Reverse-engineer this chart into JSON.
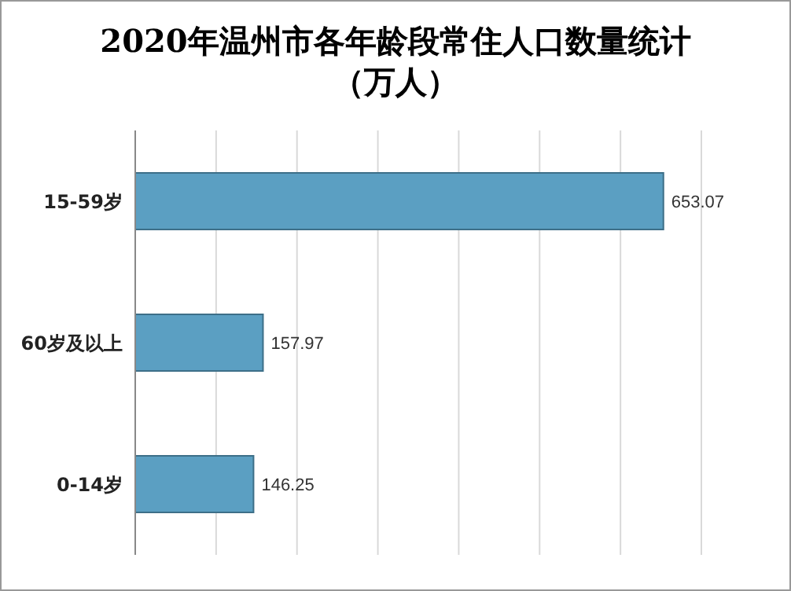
{
  "chart_data": {
    "type": "bar",
    "orientation": "horizontal",
    "title": "2020年温州市各年龄段常住人口数量统计（万人）",
    "categories": [
      "15-59岁",
      "60岁及以上",
      "0-14岁"
    ],
    "values": [
      653.07,
      157.97,
      146.25
    ],
    "color": "#5b9fc2",
    "xlim": [
      0,
      700
    ],
    "xticks": [
      {
        "value": 0,
        "label": null
      },
      {
        "value": 100,
        "label": null
      },
      {
        "value": 200,
        "label": null
      },
      {
        "value": 300,
        "label": null
      },
      {
        "value": 400,
        "label": null
      },
      {
        "value": 500,
        "label": null
      },
      {
        "value": 600,
        "label": null
      },
      {
        "value": 700,
        "label": null
      }
    ],
    "grid": "x",
    "tick_labels": "y",
    "data_labels": true,
    "legend": false
  }
}
